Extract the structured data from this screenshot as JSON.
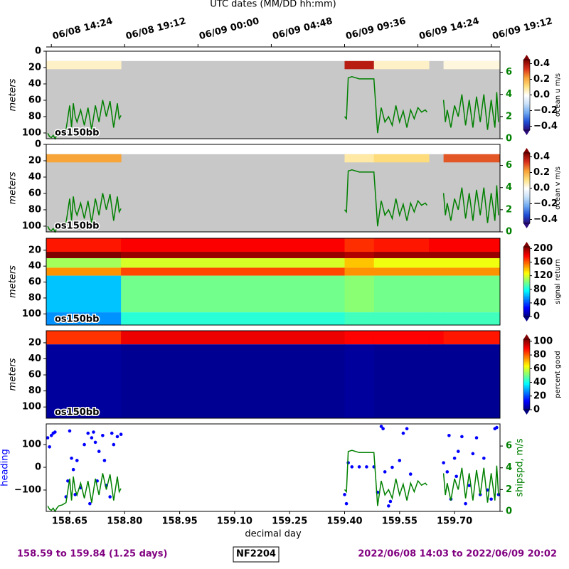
{
  "chart_data": [
    {
      "type": "heatmap",
      "label": "os150bb",
      "ylabel": "meters",
      "colorbar_label": "ocean u m/s",
      "x2label": "UTC dates (MM/DD hh:mm)",
      "x2ticks": [
        {
          "value": 158.6,
          "label": "06/08 14:24"
        },
        {
          "value": 158.8,
          "label": "06/08 19:12"
        },
        {
          "value": 159.0,
          "label": "06/09 00:00"
        },
        {
          "value": 159.2,
          "label": "06/09 04:48"
        },
        {
          "value": 159.4,
          "label": "06/09 09:36"
        },
        {
          "value": 159.6,
          "label": "06/09 14:24"
        },
        {
          "value": 159.8,
          "label": "06/09 19:12"
        }
      ],
      "xlim": [
        158.586,
        159.824
      ],
      "ylim": [
        107,
        0
      ],
      "yticks": [
        0,
        20,
        40,
        60,
        80,
        100
      ],
      "x_edges": [
        158.586,
        158.79,
        159.4,
        159.48,
        159.63,
        159.67,
        159.824
      ],
      "depth_edges": [
        12,
        22
      ],
      "z": [
        [
          0.05,
          null,
          0.38,
          0.05,
          null,
          0.03
        ]
      ],
      "clim": [
        -0.45,
        0.45
      ],
      "cticks": [
        {
          "value": -0.4,
          "label": "−0.4"
        },
        {
          "value": -0.2,
          "label": "−0.2"
        },
        {
          "value": 0,
          "label": "0.0"
        },
        0.2,
        0.4
      ],
      "colormap": [
        "#2b0a7a",
        "#1f4fd6",
        "#6fa8f0",
        "#c7e0f8",
        "#ffffff",
        "#ffe080",
        "#f7a136",
        "#d9301c",
        "#800000"
      ],
      "nodata_color": "#c8c8c8",
      "y2lim": [
        0,
        7.9
      ],
      "y2ticks": [
        0,
        2,
        4,
        6
      ],
      "y2color": "green",
      "series": [
        {
          "type": "line",
          "color": "green",
          "axis": "y2",
          "x": [
            158.59,
            158.595,
            158.6,
            158.605,
            158.61,
            158.615,
            158.62,
            158.63,
            158.64,
            158.65,
            158.655,
            158.66,
            158.665,
            158.67,
            158.68,
            158.69,
            158.7,
            158.71,
            158.72,
            158.73,
            158.74,
            158.75,
            158.76,
            158.77,
            158.78,
            158.785,
            158.79,
            159.0,
            159.4,
            159.405,
            159.41,
            159.42,
            159.44,
            159.46,
            159.48,
            159.485,
            159.49,
            159.5,
            159.51,
            159.52,
            159.53,
            159.54,
            159.55,
            159.56,
            159.57,
            159.58,
            159.59,
            159.6,
            159.61,
            159.62,
            159.625,
            159.65,
            159.67,
            159.675,
            159.68,
            159.69,
            159.7,
            159.71,
            159.72,
            159.73,
            159.74,
            159.75,
            159.76,
            159.77,
            159.78,
            159.79,
            159.8,
            159.81,
            159.815,
            159.82
          ],
          "values": [
            0.5,
            0.2,
            0.1,
            0.3,
            0.0,
            0.3,
            0.5,
            0.6,
            0.8,
            3.0,
            1.0,
            3.2,
            2.0,
            1.5,
            2.6,
            1.2,
            2.8,
            0.8,
            3.0,
            1.5,
            3.5,
            2.0,
            3.4,
            1.0,
            3.2,
            1.8,
            2.1,
            null,
            2.0,
            1.8,
            5.5,
            5.6,
            5.4,
            5.4,
            5.4,
            3.0,
            0.5,
            2.8,
            1.5,
            2.0,
            1.2,
            3.0,
            1.5,
            2.5,
            1.0,
            2.6,
            1.8,
            2.8,
            2.4,
            2.6,
            2.4,
            null,
            3.5,
            1.5,
            2.6,
            1.0,
            3.0,
            2.0,
            4.0,
            1.2,
            3.5,
            1.0,
            3.8,
            1.5,
            4.0,
            0.8,
            3.5,
            1.0,
            4.2,
            1.5
          ]
        }
      ]
    },
    {
      "type": "heatmap",
      "label": "os150bb",
      "ylabel": "meters",
      "colorbar_label": "ocean v m/s",
      "xlim": [
        158.586,
        159.824
      ],
      "ylim": [
        107,
        0
      ],
      "yticks": [
        0,
        20,
        40,
        60,
        80,
        100
      ],
      "x_edges": [
        158.586,
        158.79,
        159.4,
        159.48,
        159.63,
        159.67,
        159.824
      ],
      "depth_edges": [
        12,
        22
      ],
      "z": [
        [
          0.22,
          null,
          0.08,
          0.12,
          null,
          0.3
        ]
      ],
      "clim": [
        -0.45,
        0.45
      ],
      "cticks": [
        {
          "value": -0.4,
          "label": "−0.4"
        },
        {
          "value": -0.2,
          "label": "−0.2"
        },
        {
          "value": 0,
          "label": "0.0"
        },
        0.2,
        0.4
      ],
      "colormap": [
        "#2b0a7a",
        "#1f4fd6",
        "#6fa8f0",
        "#c7e0f8",
        "#ffffff",
        "#ffe080",
        "#f7a136",
        "#d9301c",
        "#800000"
      ],
      "nodata_color": "#c8c8c8",
      "y2lim": [
        0,
        7.9
      ],
      "y2ticks": [
        0,
        2,
        4,
        6
      ],
      "y2color": "green",
      "series": [
        {
          "type": "line",
          "color": "green",
          "axis": "y2",
          "x": [
            158.59,
            158.595,
            158.6,
            158.605,
            158.61,
            158.615,
            158.62,
            158.63,
            158.64,
            158.65,
            158.655,
            158.66,
            158.665,
            158.67,
            158.68,
            158.69,
            158.7,
            158.71,
            158.72,
            158.73,
            158.74,
            158.75,
            158.76,
            158.77,
            158.78,
            158.785,
            158.79,
            159.0,
            159.4,
            159.405,
            159.41,
            159.42,
            159.44,
            159.46,
            159.48,
            159.485,
            159.49,
            159.5,
            159.51,
            159.52,
            159.53,
            159.54,
            159.55,
            159.56,
            159.57,
            159.58,
            159.59,
            159.6,
            159.61,
            159.62,
            159.625,
            159.65,
            159.67,
            159.675,
            159.68,
            159.69,
            159.7,
            159.71,
            159.72,
            159.73,
            159.74,
            159.75,
            159.76,
            159.77,
            159.78,
            159.79,
            159.8,
            159.81,
            159.815,
            159.82
          ],
          "values": [
            0.5,
            0.2,
            0.1,
            0.3,
            0.0,
            0.3,
            0.5,
            0.6,
            0.8,
            3.0,
            1.0,
            3.2,
            2.0,
            1.5,
            2.6,
            1.2,
            2.8,
            0.8,
            3.0,
            1.5,
            3.5,
            2.0,
            3.4,
            1.0,
            3.2,
            1.8,
            2.1,
            null,
            2.0,
            1.8,
            5.5,
            5.6,
            5.4,
            5.4,
            5.4,
            3.0,
            0.5,
            2.8,
            1.5,
            2.0,
            1.2,
            3.0,
            1.5,
            2.5,
            1.0,
            2.6,
            1.8,
            2.8,
            2.4,
            2.6,
            2.4,
            null,
            3.5,
            1.5,
            2.6,
            1.0,
            3.0,
            2.0,
            4.0,
            1.2,
            3.5,
            1.0,
            3.8,
            1.5,
            4.0,
            0.8,
            3.5,
            1.0,
            4.2,
            1.5
          ]
        }
      ]
    },
    {
      "type": "heatmap",
      "label": "os150bb",
      "ylabel": "meters",
      "colorbar_label": "signal return",
      "xlim": [
        158.586,
        159.824
      ],
      "ylim": [
        114,
        5
      ],
      "yticks": [
        20,
        40,
        60,
        80,
        100
      ],
      "x_edges": [
        158.586,
        158.79,
        159.4,
        159.48,
        159.63,
        159.67,
        159.824
      ],
      "depth_edges": [
        5,
        22,
        30,
        42,
        52,
        98,
        114
      ],
      "z": [
        [
          175,
          180,
          170,
          175,
          180,
          180
        ],
        [
          205,
          200,
          195,
          200,
          200,
          200
        ],
        [
          110,
          120,
          140,
          125,
          125,
          125
        ],
        [
          150,
          165,
          150,
          150,
          150,
          150
        ],
        [
          65,
          100,
          105,
          100,
          100,
          100
        ],
        [
          55,
          85,
          90,
          90,
          90,
          90
        ]
      ],
      "clim": [
        0,
        205
      ],
      "cticks": [
        0,
        40,
        80,
        120,
        160,
        200
      ],
      "colormap": [
        "#00007f",
        "#0000ff",
        "#007fff",
        "#00ffff",
        "#7fff7f",
        "#ffff00",
        "#ff7f00",
        "#ff0000",
        "#7f0000"
      ]
    },
    {
      "type": "heatmap",
      "label": "os150bb",
      "ylabel": "meters",
      "colorbar_label": "percent good",
      "xlim": [
        158.586,
        159.824
      ],
      "ylim": [
        114,
        5
      ],
      "yticks": [
        20,
        40,
        60,
        80,
        100
      ],
      "x_edges": [
        158.586,
        158.79,
        159.4,
        159.48,
        159.63,
        159.67,
        159.824
      ],
      "depth_edges": [
        5,
        22,
        114
      ],
      "z": [
        [
          85,
          92,
          90,
          90,
          90,
          88
        ],
        [
          3,
          2,
          3,
          2,
          2,
          2
        ]
      ],
      "clim": [
        0,
        103
      ],
      "cticks": [
        0,
        20,
        40,
        60,
        80,
        100
      ],
      "colormap": [
        "#00007f",
        "#0000ff",
        "#007fff",
        "#00ffff",
        "#7fff7f",
        "#ffff00",
        "#ff7f00",
        "#ff0000",
        "#7f0000"
      ]
    },
    {
      "type": "scatter",
      "xlabel": "decimal day",
      "ylabel": "heading",
      "ylabel_color": "blue",
      "y2label": "shipspd, m/s",
      "y2color": "green",
      "xlim": [
        158.586,
        159.824
      ],
      "xticks": [
        158.65,
        {
          "value": 158.8,
          "label": "158.80"
        },
        158.95,
        {
          "value": 159.1,
          "label": "159.10"
        },
        159.25,
        {
          "value": 159.4,
          "label": "159.40"
        },
        159.55,
        {
          "value": 159.7,
          "label": "159.70"
        }
      ],
      "ylim": [
        -194,
        191
      ],
      "yticks": [
        {
          "value": -100,
          "label": "−100"
        },
        0,
        100
      ],
      "y2lim": [
        0,
        8.03
      ],
      "y2ticks": [
        0,
        2,
        4,
        6
      ],
      "series": [
        {
          "type": "scatter",
          "color": "blue",
          "x": [
            158.59,
            158.595,
            158.6,
            158.605,
            158.61,
            158.64,
            158.645,
            158.65,
            158.655,
            158.66,
            158.665,
            158.67,
            158.68,
            158.69,
            158.7,
            158.705,
            158.71,
            158.715,
            158.72,
            158.725,
            158.73,
            158.74,
            158.745,
            158.75,
            158.76,
            158.765,
            158.77,
            158.78,
            158.79,
            159.4,
            159.405,
            159.41,
            159.42,
            159.44,
            159.46,
            159.48,
            159.49,
            159.5,
            159.505,
            159.51,
            159.52,
            159.525,
            159.53,
            159.55,
            159.56,
            159.57,
            159.58,
            159.67,
            159.68,
            159.685,
            159.69,
            159.7,
            159.705,
            159.71,
            159.72,
            159.73,
            159.74,
            159.75,
            159.76,
            159.77,
            159.78,
            159.79,
            159.8,
            159.81,
            159.815,
            159.82
          ],
          "values": [
            130,
            90,
            140,
            150,
            155,
            -130,
            -60,
            160,
            40,
            -10,
            -120,
            30,
            -90,
            100,
            150,
            -160,
            130,
            155,
            110,
            -60,
            70,
            140,
            30,
            -80,
            -130,
            150,
            100,
            135,
            145,
            -120,
            -160,
            20,
            2,
            2,
            2,
            2,
            -110,
            180,
            170,
            -20,
            -170,
            -150,
            0,
            30,
            150,
            170,
            -30,
            20,
            -20,
            140,
            -140,
            40,
            -40,
            70,
            135,
            -160,
            -80,
            60,
            130,
            -120,
            40,
            -100,
            -140,
            170,
            175,
            -120
          ]
        },
        {
          "type": "line",
          "color": "green",
          "axis": "y2",
          "x": [
            158.59,
            158.595,
            158.6,
            158.605,
            158.61,
            158.615,
            158.62,
            158.63,
            158.64,
            158.65,
            158.655,
            158.66,
            158.665,
            158.67,
            158.68,
            158.69,
            158.7,
            158.71,
            158.72,
            158.73,
            158.74,
            158.75,
            158.76,
            158.77,
            158.78,
            158.785,
            158.79,
            159.0,
            159.4,
            159.405,
            159.41,
            159.42,
            159.44,
            159.46,
            159.48,
            159.485,
            159.49,
            159.5,
            159.51,
            159.52,
            159.53,
            159.54,
            159.55,
            159.56,
            159.57,
            159.58,
            159.59,
            159.6,
            159.61,
            159.62,
            159.625,
            159.65,
            159.67,
            159.675,
            159.68,
            159.69,
            159.7,
            159.71,
            159.72,
            159.73,
            159.74,
            159.75,
            159.76,
            159.77,
            159.78,
            159.79,
            159.8,
            159.81,
            159.815,
            159.82
          ],
          "values": [
            0.5,
            0.2,
            0.1,
            0.3,
            0.0,
            0.3,
            0.5,
            0.6,
            0.8,
            3.0,
            1.0,
            3.2,
            2.0,
            1.5,
            2.6,
            1.2,
            2.8,
            0.8,
            3.0,
            1.5,
            3.5,
            2.0,
            3.4,
            1.0,
            3.2,
            1.8,
            2.1,
            null,
            2.0,
            1.8,
            5.5,
            5.6,
            5.4,
            5.4,
            5.4,
            3.0,
            0.5,
            2.8,
            1.5,
            2.0,
            1.2,
            3.0,
            1.5,
            2.5,
            1.0,
            2.6,
            1.8,
            2.8,
            2.4,
            2.6,
            2.4,
            null,
            3.5,
            1.5,
            2.6,
            1.0,
            3.0,
            2.0,
            4.0,
            1.2,
            3.5,
            1.0,
            3.8,
            1.5,
            4.0,
            0.8,
            3.5,
            1.0,
            4.2,
            1.5
          ]
        }
      ]
    }
  ],
  "footer": {
    "left": "158.59 to 159.84 (1.25 days)",
    "center": "NF2204",
    "right": "2022/06/08 14:03 to 2022/06/09 20:02",
    "color": "#800080"
  }
}
